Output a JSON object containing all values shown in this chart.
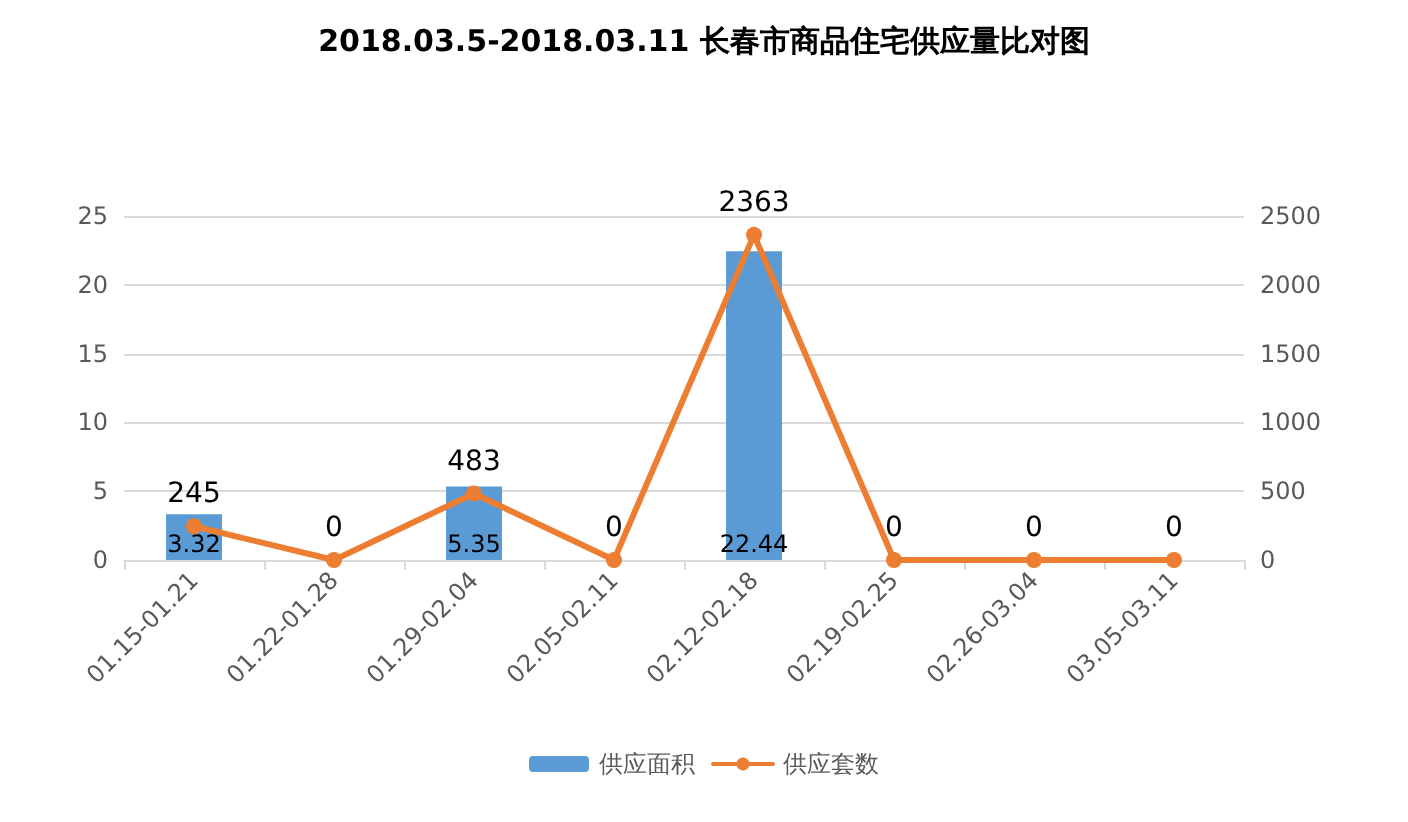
{
  "chart_data": {
    "type": "bar",
    "title": "2018.03.5-2018.03.11 长春市商品住宅供应量比对图",
    "categories": [
      "01.15-01.21",
      "01.22-01.28",
      "01.29-02.04",
      "02.05-02.11",
      "02.12-02.18",
      "02.19-02.25",
      "02.26-03.04",
      "03.05-03.11"
    ],
    "series": [
      {
        "name": "供应面积",
        "color": "#5b9bd5",
        "values": [
          3.32,
          0,
          5.35,
          0,
          22.44,
          0,
          0,
          0
        ],
        "value_labels": [
          "3.32",
          null,
          "5.35",
          null,
          "22.44",
          null,
          null,
          null
        ]
      },
      {
        "name": "供应套数",
        "type": "line",
        "axis": "y2",
        "color": "#ed7d31",
        "marker": "circle",
        "values": [
          245,
          0,
          483,
          0,
          2363,
          0,
          0,
          0
        ],
        "value_labels": [
          "245",
          "0",
          "483",
          "0",
          "2363",
          "0",
          "0",
          "0"
        ]
      }
    ],
    "ylim": [
      0,
      25
    ],
    "yticks": [
      0,
      5,
      10,
      15,
      20,
      25
    ],
    "y2lim": [
      0,
      2500
    ],
    "y2ticks": [
      0,
      500,
      1000,
      1500,
      2000,
      2500
    ],
    "grid": "y",
    "legend": "bottom"
  }
}
